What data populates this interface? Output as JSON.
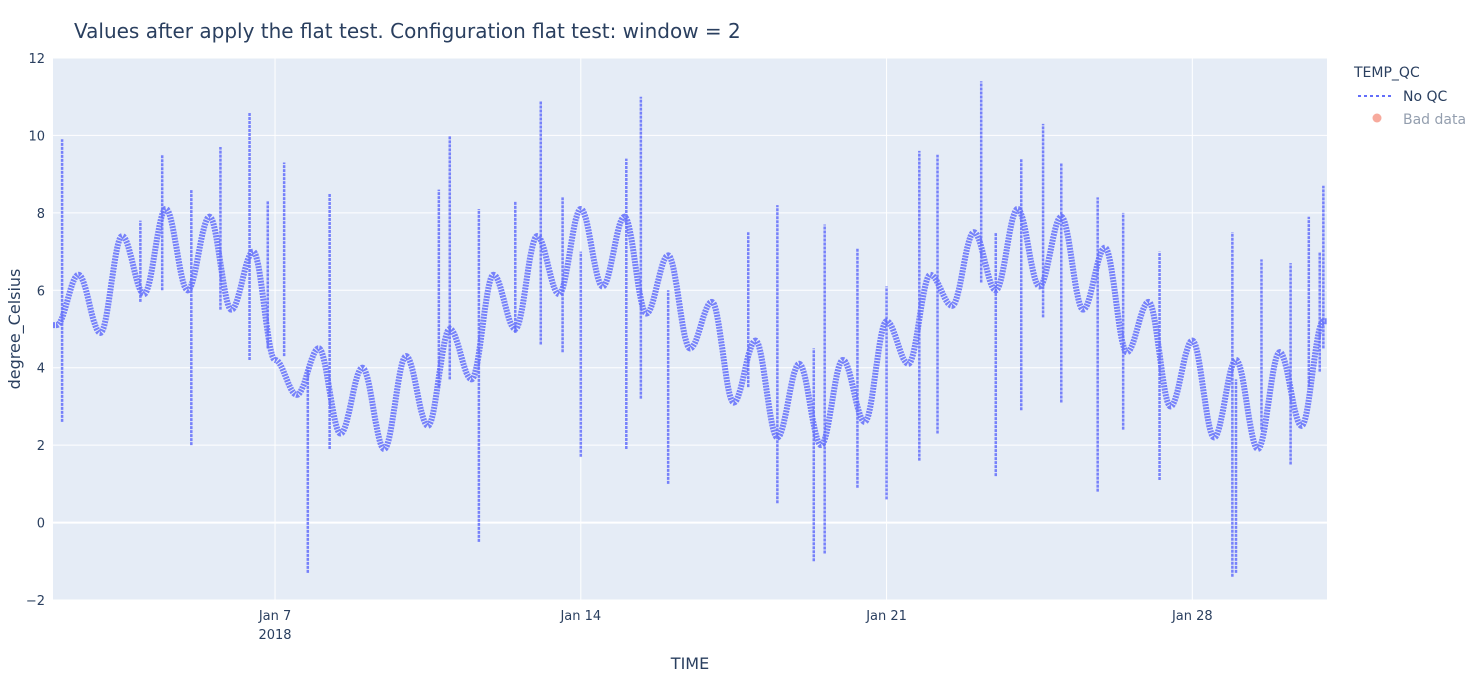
{
  "chart_data": {
    "type": "line",
    "title": "Values after apply the flat test.  Configuration flat test: window = 2",
    "xlabel": "TIME",
    "ylabel": "degree_Celsius",
    "xlim": [
      "2018-01-01T22:00",
      "2018-01-31T02:00"
    ],
    "ylim": [
      -2,
      12
    ],
    "x_ticks": [
      {
        "date": "2018-01-07",
        "label": "Jan 7",
        "sublabel": "2018"
      },
      {
        "date": "2018-01-14",
        "label": "Jan 14",
        "sublabel": ""
      },
      {
        "date": "2018-01-21",
        "label": "Jan 21",
        "sublabel": ""
      },
      {
        "date": "2018-01-28",
        "label": "Jan 28",
        "sublabel": ""
      }
    ],
    "y_ticks": [
      -2,
      0,
      2,
      4,
      6,
      8,
      10,
      12
    ],
    "y_tick_labels": [
      "−2",
      "0",
      "2",
      "4",
      "6",
      "8",
      "10",
      "12"
    ],
    "grid": true,
    "legend": {
      "title": "TEMP_QC",
      "position": "top-right",
      "items": [
        {
          "name": "No QC",
          "symbol": "dotted-line",
          "color": "#636efa",
          "visible": true
        },
        {
          "name": "Bad data",
          "symbol": "circle",
          "color": "#ef553b",
          "visible": false
        }
      ]
    },
    "series": [
      {
        "name": "No QC",
        "color": "#636efa",
        "x": [
          "2018-01-02T00:00",
          "2018-01-02T12:00",
          "2018-01-03T00:00",
          "2018-01-03T12:00",
          "2018-01-04T00:00",
          "2018-01-04T12:00",
          "2018-01-05T00:00",
          "2018-01-05T12:00",
          "2018-01-06T00:00",
          "2018-01-06T12:00",
          "2018-01-07T00:00",
          "2018-01-07T12:00",
          "2018-01-08T00:00",
          "2018-01-08T12:00",
          "2018-01-09T00:00",
          "2018-01-09T12:00",
          "2018-01-10T00:00",
          "2018-01-10T12:00",
          "2018-01-11T00:00",
          "2018-01-11T12:00",
          "2018-01-12T00:00",
          "2018-01-12T12:00",
          "2018-01-13T00:00",
          "2018-01-13T12:00",
          "2018-01-14T00:00",
          "2018-01-14T12:00",
          "2018-01-15T00:00",
          "2018-01-15T12:00",
          "2018-01-16T00:00",
          "2018-01-16T12:00",
          "2018-01-17T00:00",
          "2018-01-17T12:00",
          "2018-01-18T00:00",
          "2018-01-18T12:00",
          "2018-01-19T00:00",
          "2018-01-19T12:00",
          "2018-01-20T00:00",
          "2018-01-20T12:00",
          "2018-01-21T00:00",
          "2018-01-21T12:00",
          "2018-01-22T00:00",
          "2018-01-22T12:00",
          "2018-01-23T00:00",
          "2018-01-23T12:00",
          "2018-01-24T00:00",
          "2018-01-24T12:00",
          "2018-01-25T00:00",
          "2018-01-25T12:00",
          "2018-01-26T00:00",
          "2018-01-26T12:00",
          "2018-01-27T00:00",
          "2018-01-27T12:00",
          "2018-01-28T00:00",
          "2018-01-28T12:00",
          "2018-01-29T00:00",
          "2018-01-29T12:00",
          "2018-01-30T00:00",
          "2018-01-30T12:00",
          "2018-01-31T00:00"
        ],
        "y": [
          5.1,
          6.4,
          4.9,
          7.4,
          5.9,
          8.1,
          6.0,
          7.9,
          5.5,
          7.0,
          4.2,
          3.3,
          4.5,
          2.3,
          4.0,
          1.9,
          4.3,
          2.5,
          5.0,
          3.7,
          6.4,
          5.0,
          7.4,
          5.9,
          8.1,
          6.1,
          7.9,
          5.4,
          6.9,
          4.5,
          5.7,
          3.1,
          4.7,
          2.2,
          4.1,
          2.0,
          4.2,
          2.6,
          5.2,
          4.1,
          6.4,
          5.6,
          7.5,
          6.0,
          8.1,
          6.1,
          7.9,
          5.5,
          7.1,
          4.4,
          5.7,
          3.0,
          4.7,
          2.2,
          4.2,
          1.9,
          4.4,
          2.5,
          5.2
        ]
      }
    ],
    "spikes": [
      {
        "date": "2018-01-02T03:00",
        "y_min": 2.6,
        "y_max": 9.9
      },
      {
        "date": "2018-01-03T22:00",
        "y_min": 5.7,
        "y_max": 7.8
      },
      {
        "date": "2018-01-04T10:00",
        "y_min": 6.0,
        "y_max": 9.5
      },
      {
        "date": "2018-01-05T02:00",
        "y_min": 2.0,
        "y_max": 8.6
      },
      {
        "date": "2018-01-05T18:00",
        "y_min": 5.5,
        "y_max": 9.7
      },
      {
        "date": "2018-01-06T10:00",
        "y_min": 4.2,
        "y_max": 10.6
      },
      {
        "date": "2018-01-06T20:00",
        "y_min": 4.5,
        "y_max": 8.3
      },
      {
        "date": "2018-01-07T05:00",
        "y_min": 4.3,
        "y_max": 9.3
      },
      {
        "date": "2018-01-07T18:00",
        "y_min": -1.3,
        "y_max": 4.0
      },
      {
        "date": "2018-01-08T06:00",
        "y_min": 1.9,
        "y_max": 8.5
      },
      {
        "date": "2018-01-10T18:00",
        "y_min": 3.5,
        "y_max": 8.6
      },
      {
        "date": "2018-01-11T00:00",
        "y_min": 3.7,
        "y_max": 10.0
      },
      {
        "date": "2018-01-11T16:00",
        "y_min": -0.5,
        "y_max": 8.1
      },
      {
        "date": "2018-01-12T12:00",
        "y_min": 4.9,
        "y_max": 8.3
      },
      {
        "date": "2018-01-13T02:00",
        "y_min": 4.6,
        "y_max": 10.9
      },
      {
        "date": "2018-01-13T14:00",
        "y_min": 4.4,
        "y_max": 8.4
      },
      {
        "date": "2018-01-14T00:00",
        "y_min": 1.7,
        "y_max": 7.0
      },
      {
        "date": "2018-01-15T01:00",
        "y_min": 1.9,
        "y_max": 9.4
      },
      {
        "date": "2018-01-15T09:00",
        "y_min": 3.2,
        "y_max": 11.0
      },
      {
        "date": "2018-01-16T00:00",
        "y_min": 1.0,
        "y_max": 6.0
      },
      {
        "date": "2018-01-17T20:00",
        "y_min": 3.5,
        "y_max": 7.5
      },
      {
        "date": "2018-01-18T12:00",
        "y_min": 0.5,
        "y_max": 8.2
      },
      {
        "date": "2018-01-19T08:00",
        "y_min": -1.0,
        "y_max": 4.5
      },
      {
        "date": "2018-01-19T14:00",
        "y_min": -0.8,
        "y_max": 7.7
      },
      {
        "date": "2018-01-20T08:00",
        "y_min": 0.9,
        "y_max": 7.1
      },
      {
        "date": "2018-01-21T00:00",
        "y_min": 0.6,
        "y_max": 6.1
      },
      {
        "date": "2018-01-21T18:00",
        "y_min": 1.6,
        "y_max": 9.6
      },
      {
        "date": "2018-01-22T04:00",
        "y_min": 2.3,
        "y_max": 9.5
      },
      {
        "date": "2018-01-23T04:00",
        "y_min": 6.2,
        "y_max": 11.4
      },
      {
        "date": "2018-01-23T12:00",
        "y_min": 1.2,
        "y_max": 7.5
      },
      {
        "date": "2018-01-24T02:00",
        "y_min": 2.9,
        "y_max": 9.4
      },
      {
        "date": "2018-01-24T14:00",
        "y_min": 5.3,
        "y_max": 10.3
      },
      {
        "date": "2018-01-25T00:00",
        "y_min": 3.1,
        "y_max": 9.3
      },
      {
        "date": "2018-01-25T20:00",
        "y_min": 0.8,
        "y_max": 8.4
      },
      {
        "date": "2018-01-26T10:00",
        "y_min": 2.4,
        "y_max": 8.0
      },
      {
        "date": "2018-01-27T06:00",
        "y_min": 1.1,
        "y_max": 7.0
      },
      {
        "date": "2018-01-28T22:00",
        "y_min": -1.4,
        "y_max": 7.5
      },
      {
        "date": "2018-01-29T00:00",
        "y_min": -1.3,
        "y_max": 3.7
      },
      {
        "date": "2018-01-29T14:00",
        "y_min": 2.4,
        "y_max": 6.8
      },
      {
        "date": "2018-01-30T06:00",
        "y_min": 1.5,
        "y_max": 6.7
      },
      {
        "date": "2018-01-30T16:00",
        "y_min": 3.5,
        "y_max": 7.9
      },
      {
        "date": "2018-01-30T22:00",
        "y_min": 3.9,
        "y_max": 7.0
      },
      {
        "date": "2018-01-31T00:00",
        "y_min": 4.5,
        "y_max": 8.7
      }
    ]
  }
}
